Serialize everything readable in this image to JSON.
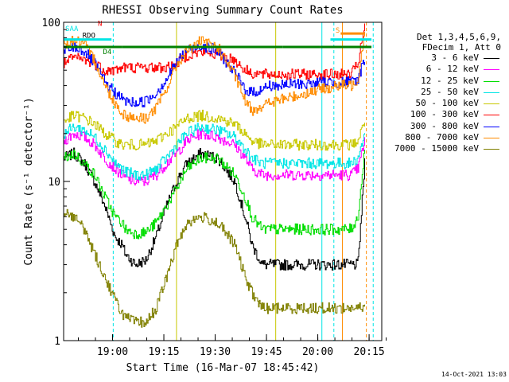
{
  "chart_data": {
    "type": "line",
    "title": "RHESSI Observing Summary Count Rates",
    "xlabel": "Start Time (16-Mar-07 18:45:42)",
    "ylabel": "Count Rate (s⁻¹ detector⁻¹)",
    "y_scale": "log",
    "ylim": [
      1,
      100
    ],
    "xlim_minutes_after_18_45_42": [
      0,
      93
    ],
    "x_tick_labels": [
      "19:00",
      "19:15",
      "19:30",
      "19:45",
      "20:00",
      "20:15"
    ],
    "y_tick_labels": [
      "1",
      "10",
      "100"
    ],
    "legend_header": [
      "Det 1,3,4,5,6,9,",
      "FDecim 1, Att 0"
    ],
    "legend_placement": "right",
    "grid": false,
    "x_minutes": [
      0,
      3,
      6,
      9,
      12,
      15,
      17,
      18,
      21,
      24,
      27,
      30,
      33,
      34,
      36,
      40,
      45,
      50,
      53,
      55,
      58,
      60,
      62,
      64,
      67,
      69,
      71,
      73,
      75,
      78,
      81,
      84,
      86,
      88
    ],
    "series": [
      {
        "name": "3 - 6 keV",
        "color": "#000000",
        "values": [
          14,
          15,
          13,
          10,
          7,
          4.5,
          4,
          3.5,
          3,
          3.2,
          4.5,
          7,
          10,
          11,
          13,
          15,
          14,
          10,
          6,
          4,
          3,
          3,
          3,
          3,
          3,
          3,
          3,
          3,
          3,
          3,
          3,
          3,
          3,
          13
        ]
      },
      {
        "name": "6 - 12 keV",
        "color": "#ff00ff",
        "values": [
          18,
          20,
          19,
          17,
          14,
          12,
          11,
          10.5,
          10,
          10,
          11,
          13,
          15,
          16,
          18,
          20,
          19,
          17,
          14,
          12,
          11,
          11,
          11,
          11,
          11,
          11,
          11,
          11,
          11,
          11,
          11,
          11,
          12,
          18
        ]
      },
      {
        "name": "12 - 25 keV",
        "color": "#00dd00",
        "values": [
          14,
          15,
          13,
          11,
          8,
          6,
          5.5,
          5,
          4.7,
          4.8,
          5.5,
          7,
          9,
          10,
          12,
          14,
          14,
          11,
          8,
          6,
          5,
          5,
          5,
          5,
          5,
          5,
          5,
          5,
          5,
          5,
          5,
          5,
          6,
          16
        ]
      },
      {
        "name": "25 - 50 keV",
        "color": "#00e5e5",
        "values": [
          20,
          22,
          21,
          19,
          16,
          13,
          12,
          11.5,
          11,
          11,
          12,
          14,
          17,
          18,
          20,
          22,
          21,
          19,
          16,
          14,
          13,
          13,
          13,
          13,
          13,
          13,
          13,
          13,
          13,
          13,
          13,
          13,
          14,
          20
        ]
      },
      {
        "name": "50 - 100 keV",
        "color": "#c8c800",
        "values": [
          24,
          26,
          25,
          23,
          20,
          18,
          17,
          17,
          17,
          17,
          18,
          20,
          22,
          23,
          25,
          26,
          25,
          23,
          20,
          18,
          17,
          17,
          17,
          17,
          17,
          17,
          17,
          17,
          17,
          17,
          17,
          17,
          18,
          24
        ]
      },
      {
        "name": "100 - 300 keV",
        "color": "#ff0000",
        "values": [
          55,
          60,
          58,
          55,
          50,
          50,
          52,
          52,
          52,
          52,
          52,
          52,
          55,
          58,
          62,
          65,
          63,
          58,
          50,
          48,
          47,
          47,
          47,
          47,
          47,
          47,
          47,
          47,
          47,
          47,
          47,
          47,
          55,
          95
        ]
      },
      {
        "name": "300 - 800 keV",
        "color": "#0000ff",
        "values": [
          65,
          70,
          66,
          55,
          42,
          36,
          33,
          32,
          31,
          32,
          36,
          44,
          56,
          60,
          66,
          72,
          66,
          48,
          38,
          36,
          38,
          40,
          40,
          40,
          41,
          41,
          41,
          41,
          42,
          42,
          42,
          42,
          44,
          60
        ]
      },
      {
        "name": "800 - 7000 keV",
        "color": "#ff8c00",
        "values": [
          72,
          78,
          72,
          58,
          40,
          31,
          27,
          26,
          25,
          25,
          29,
          38,
          54,
          58,
          66,
          76,
          70,
          46,
          32,
          28,
          30,
          31,
          32,
          33,
          34,
          35,
          36,
          37,
          38,
          39,
          40,
          40,
          44,
          90
        ]
      },
      {
        "name": "7000 - 15000 keV",
        "color": "#808000",
        "values": [
          6.5,
          6,
          5,
          3.5,
          2.5,
          1.8,
          1.5,
          1.4,
          1.3,
          1.3,
          1.6,
          2.5,
          4,
          4.5,
          5.5,
          6,
          5.5,
          4,
          2.5,
          2,
          1.6,
          1.6,
          1.6,
          1.6,
          1.6,
          1.6,
          1.6,
          1.6,
          1.6,
          1.6,
          1.6,
          1.6,
          1.6,
          1.6
        ]
      }
    ],
    "annotations": [
      {
        "label": "SAA",
        "color": "#00e5e5"
      },
      {
        "label": "RDO",
        "color": "#000000"
      },
      {
        "label": "N",
        "color": "#ff0000"
      },
      {
        "label": "D4",
        "color": "#008000"
      },
      {
        "label": "S",
        "color": "#ff8c00"
      }
    ],
    "flag_bars": [
      {
        "color": "#008000",
        "y": 70,
        "x_ranges": [
          [
            0,
            17
          ],
          [
            17,
            33
          ],
          [
            33,
            64
          ],
          [
            64,
            75
          ],
          [
            75,
            90
          ]
        ]
      },
      {
        "color": "#00e5e5",
        "y": 78,
        "x_ranges": [
          [
            0,
            14
          ],
          [
            78,
            90
          ]
        ]
      },
      {
        "color": "#ff8c00",
        "y": 85,
        "x_ranges": [
          [
            81,
            88
          ]
        ]
      }
    ],
    "vertical_markers": [
      {
        "x": 0,
        "color": "#00e5e5",
        "style": "solid"
      },
      {
        "x": 14.5,
        "color": "#00e5e5",
        "style": "dashed"
      },
      {
        "x": 33,
        "color": "#c8c800",
        "style": "solid"
      },
      {
        "x": 62,
        "color": "#c8c800",
        "style": "solid"
      },
      {
        "x": 75.5,
        "color": "#00e5e5",
        "style": "solid"
      },
      {
        "x": 79,
        "color": "#00e5e5",
        "style": "dashed"
      },
      {
        "x": 81.5,
        "color": "#ff8c00",
        "style": "solid"
      },
      {
        "x": 88.5,
        "color": "#ff8c00",
        "style": "dashed"
      },
      {
        "x": 90.5,
        "color": "#00e5e5",
        "style": "dashed"
      }
    ]
  },
  "footer_date": "14-Oct-2021 13:03"
}
